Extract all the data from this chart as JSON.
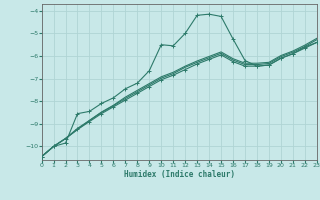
{
  "xlabel": "Humidex (Indice chaleur)",
  "background_color": "#c8e8e8",
  "grid_color": "#b0d4d4",
  "line_color": "#2d7a6a",
  "xlim": [
    0,
    23
  ],
  "ylim": [
    -10.6,
    -3.7
  ],
  "yticks": [
    -10,
    -9,
    -8,
    -7,
    -6,
    -5,
    -4
  ],
  "xticks": [
    0,
    1,
    2,
    3,
    4,
    5,
    6,
    7,
    8,
    9,
    10,
    11,
    12,
    13,
    14,
    15,
    16,
    17,
    18,
    19,
    20,
    21,
    22,
    23
  ],
  "line1_x": [
    0,
    1,
    2,
    3,
    4,
    5,
    6,
    7,
    8,
    9,
    10,
    11,
    12,
    13,
    14,
    15,
    16,
    17,
    18,
    19,
    20,
    21,
    22,
    23
  ],
  "line1_y": [
    -10.45,
    -10.0,
    -9.85,
    -8.55,
    -8.45,
    -8.1,
    -7.85,
    -7.45,
    -7.2,
    -6.65,
    -5.5,
    -5.55,
    -5.0,
    -4.2,
    -4.15,
    -4.25,
    -5.25,
    -6.2,
    -6.45,
    -6.4,
    -6.1,
    -5.9,
    -5.6,
    -5.4
  ],
  "line2_x": [
    0,
    1,
    2,
    3,
    4,
    5,
    6,
    7,
    8,
    9,
    10,
    11,
    12,
    13,
    14,
    15,
    16,
    17,
    18,
    19,
    20,
    21,
    22,
    23
  ],
  "line2_y": [
    -10.45,
    -10.0,
    -9.65,
    -9.25,
    -8.9,
    -8.55,
    -8.25,
    -7.95,
    -7.65,
    -7.35,
    -7.05,
    -6.85,
    -6.6,
    -6.35,
    -6.15,
    -5.95,
    -6.25,
    -6.45,
    -6.45,
    -6.4,
    -6.1,
    -5.9,
    -5.65,
    -5.4
  ],
  "line3_x": [
    0,
    1,
    2,
    3,
    4,
    5,
    6,
    7,
    8,
    9,
    10,
    11,
    12,
    13,
    14,
    15,
    16,
    17,
    18,
    19,
    20,
    21,
    22,
    23
  ],
  "line3_y": [
    -10.45,
    -10.0,
    -9.65,
    -9.25,
    -8.85,
    -8.5,
    -8.2,
    -7.88,
    -7.58,
    -7.28,
    -6.98,
    -6.78,
    -6.5,
    -6.28,
    -6.08,
    -5.88,
    -6.18,
    -6.38,
    -6.38,
    -6.33,
    -6.03,
    -5.83,
    -5.58,
    -5.28
  ],
  "line4_x": [
    0,
    1,
    2,
    3,
    4,
    5,
    6,
    7,
    8,
    9,
    10,
    11,
    12,
    13,
    14,
    15,
    16,
    17,
    18,
    19,
    20,
    21,
    22,
    23
  ],
  "line4_y": [
    -10.45,
    -10.0,
    -9.65,
    -9.2,
    -8.85,
    -8.48,
    -8.18,
    -7.82,
    -7.52,
    -7.22,
    -6.92,
    -6.72,
    -6.45,
    -6.22,
    -6.02,
    -5.82,
    -6.12,
    -6.32,
    -6.32,
    -6.28,
    -5.98,
    -5.78,
    -5.52,
    -5.22
  ]
}
